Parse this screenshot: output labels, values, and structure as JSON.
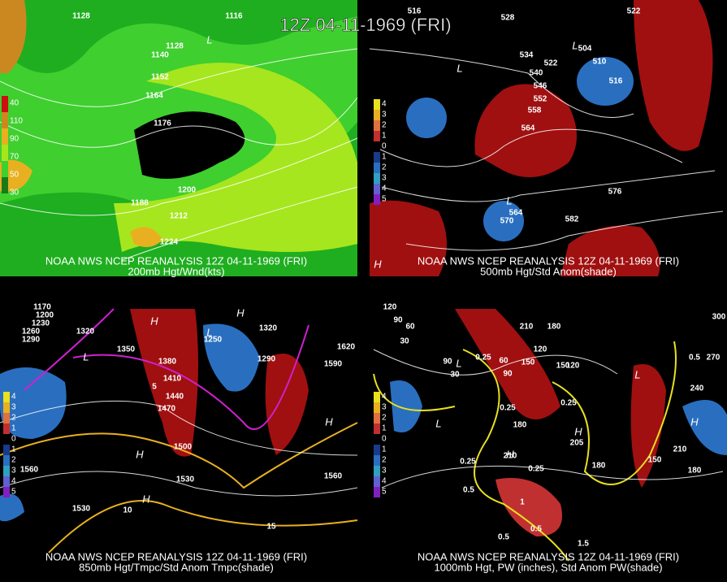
{
  "title": "12Z 04-11-1969 (FRI)",
  "panels": [
    {
      "caption": [
        "NOAA NWS NCEP REANALYSIS 12Z 04-11-1969 (FRI)",
        "200mb Hgt/Wnd(kts)"
      ],
      "legend": [
        "40",
        "110",
        "90",
        "70",
        "50",
        "30"
      ],
      "contour_labels": [
        "1128",
        "1116",
        "1128",
        "1140",
        "1152",
        "1164",
        "1176",
        "1188",
        "1200",
        "1212",
        "1224"
      ],
      "centers": [
        "L"
      ]
    },
    {
      "caption": [
        "NOAA NWS NCEP REANALYSIS 12Z 04-11-1969 (FRI)",
        "500mb Hgt/Std Anom(shade)"
      ],
      "legend": [
        "4",
        "3",
        "2",
        "1",
        "0",
        "1",
        "2",
        "3",
        "4",
        "5"
      ],
      "contour_labels": [
        "516",
        "528",
        "522",
        "534",
        "522",
        "540",
        "546",
        "552",
        "558",
        "564",
        "504",
        "510",
        "516",
        "576",
        "570",
        "582",
        "564"
      ],
      "centers": [
        "L",
        "L",
        "L",
        "H"
      ]
    },
    {
      "caption": [
        "NOAA NWS NCEP REANALYSIS 12Z 04-11-1969 (FRI)",
        "850mb Hgt/Tmpc/Std Anom Tmpc(shade)"
      ],
      "legend": [
        "4",
        "3",
        "2",
        "1",
        "0",
        "1",
        "2",
        "3",
        "4",
        "5"
      ],
      "contour_labels": [
        "1170",
        "1200",
        "1230",
        "1260",
        "1290",
        "1320",
        "1350",
        "1380",
        "1410",
        "1440",
        "1470",
        "1500",
        "1530",
        "1560",
        "1590",
        "1620",
        "1560",
        "1530",
        "1250",
        "1290",
        "1320",
        "5",
        "10",
        "15"
      ],
      "centers": [
        "H",
        "H",
        "H",
        "H",
        "H",
        "L",
        "L"
      ]
    },
    {
      "caption": [
        "NOAA NWS NCEP REANALYSIS 12Z 04-11-1969 (FRI)",
        "1000mb Hgt, PW (inches), Std Anom PW(shade)"
      ],
      "legend": [
        "4",
        "3",
        "2",
        "1",
        "0",
        "1",
        "2",
        "3",
        "4",
        "5"
      ],
      "contour_labels": [
        "120",
        "90",
        "60",
        "30",
        "90",
        "30",
        "60",
        "90",
        "120",
        "150",
        "180",
        "210",
        "150",
        "120",
        "180",
        "210",
        "205",
        "180",
        "150",
        "180",
        "210",
        "240",
        "270",
        "300",
        "0.25",
        "0.5",
        "0.25",
        "0.25",
        "0.25",
        "0.25",
        "0.5",
        "1",
        "0.5",
        "0.5",
        "1.5"
      ],
      "centers": [
        "L",
        "L",
        "L",
        "H",
        "H",
        "H"
      ]
    }
  ]
}
